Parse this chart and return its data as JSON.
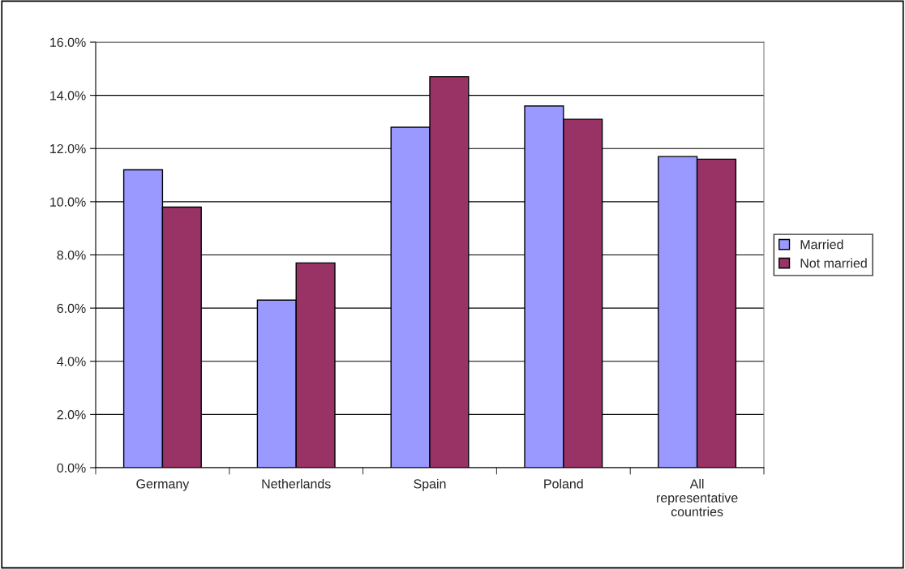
{
  "chart_data": {
    "type": "bar",
    "categories": [
      "Germany",
      "Netherlands",
      "Spain",
      "Poland",
      "All\nrepresentative\ncountries"
    ],
    "series": [
      {
        "name": "Married",
        "color": "#9999ff",
        "values": [
          11.2,
          6.3,
          12.8,
          13.6,
          11.7
        ]
      },
      {
        "name": "Not married",
        "color": "#993366",
        "values": [
          9.8,
          7.7,
          14.7,
          13.1,
          11.6
        ]
      }
    ],
    "ylim": [
      0,
      16
    ],
    "yticks": [
      {
        "value": 0,
        "label": "0.0%"
      },
      {
        "value": 2,
        "label": "2.0%"
      },
      {
        "value": 4,
        "label": "4.0%"
      },
      {
        "value": 6,
        "label": "6.0%"
      },
      {
        "value": 8,
        "label": "8.0%"
      },
      {
        "value": 10,
        "label": "10.0%"
      },
      {
        "value": 12,
        "label": "12.0%"
      },
      {
        "value": 14,
        "label": "14.0%"
      },
      {
        "value": 16,
        "label": "16.0%"
      }
    ],
    "grid": "y",
    "legend": "right"
  }
}
